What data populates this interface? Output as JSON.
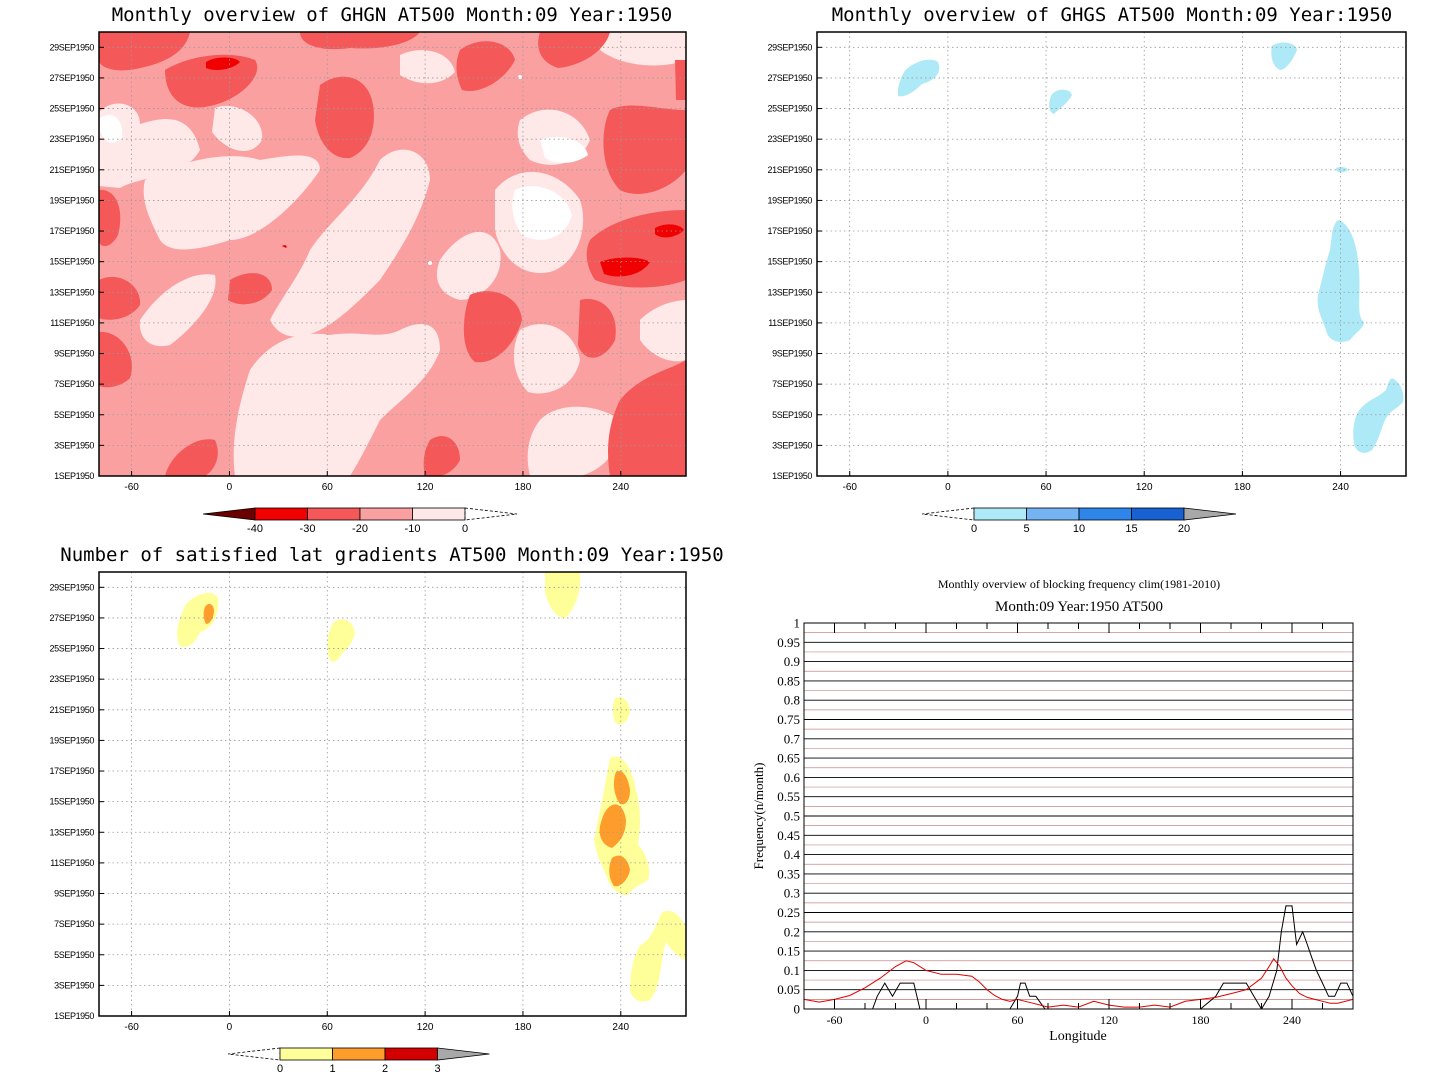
{
  "chart_data": [
    {
      "type": "heatmap",
      "title": "Monthly overview of GHGN AT500 Month:09 Year:1950",
      "y_tick_labels": [
        "1SEP1950",
        "3SEP1950",
        "5SEP1950",
        "7SEP1950",
        "9SEP1950",
        "11SEP1950",
        "13SEP1950",
        "15SEP1950",
        "17SEP1950",
        "19SEP1950",
        "21SEP1950",
        "23SEP1950",
        "25SEP1950",
        "27SEP1950",
        "29SEP1950"
      ],
      "x_tick_labels": [
        "-60",
        "0",
        "60",
        "120",
        "180",
        "240"
      ],
      "x_ticks": [
        -60,
        0,
        60,
        120,
        180,
        240
      ],
      "xlim": [
        -80,
        280
      ],
      "ylim": [
        1,
        30
      ],
      "grid": true,
      "colorbar": {
        "labels": [
          "-40",
          "-30",
          "-20",
          "-10",
          "0"
        ],
        "colors": [
          "#6b0000",
          "#f00000",
          "#f45858",
          "#fba0a0",
          "#ffe8e8",
          "#ffffff"
        ]
      }
    },
    {
      "type": "heatmap",
      "title": "Monthly overview of GHGS AT500 Month:09 Year:1950",
      "y_tick_labels": [
        "1SEP1950",
        "3SEP1950",
        "5SEP1950",
        "7SEP1950",
        "9SEP1950",
        "11SEP1950",
        "13SEP1950",
        "15SEP1950",
        "17SEP1950",
        "19SEP1950",
        "21SEP1950",
        "23SEP1950",
        "25SEP1950",
        "27SEP1950",
        "29SEP1950"
      ],
      "x_tick_labels": [
        "-60",
        "0",
        "60",
        "120",
        "180",
        "240"
      ],
      "x_ticks": [
        -60,
        0,
        60,
        120,
        180,
        240
      ],
      "xlim": [
        -80,
        280
      ],
      "ylim": [
        1,
        30
      ],
      "grid": true,
      "colorbar": {
        "labels": [
          "0",
          "5",
          "10",
          "15",
          "20"
        ],
        "colors": [
          "#ffffff",
          "#aee9f7",
          "#74b4f2",
          "#2f86ea",
          "#1761d2",
          "#a8a8a8"
        ]
      }
    },
    {
      "type": "heatmap",
      "title": "Number of satisfied lat gradients AT500 Month:09 Year:1950",
      "y_tick_labels": [
        "1SEP1950",
        "3SEP1950",
        "5SEP1950",
        "7SEP1950",
        "9SEP1950",
        "11SEP1950",
        "13SEP1950",
        "15SEP1950",
        "17SEP1950",
        "19SEP1950",
        "21SEP1950",
        "23SEP1950",
        "25SEP1950",
        "27SEP1950",
        "29SEP1950"
      ],
      "x_tick_labels": [
        "-60",
        "0",
        "60",
        "120",
        "180",
        "240"
      ],
      "x_ticks": [
        -60,
        0,
        60,
        120,
        180,
        240
      ],
      "xlim": [
        -80,
        280
      ],
      "ylim": [
        1,
        30
      ],
      "grid": true,
      "colorbar": {
        "labels": [
          "0",
          "1",
          "2",
          "3"
        ],
        "colors": [
          "#ffffff",
          "#ffff9a",
          "#ff9d2c",
          "#d20000",
          "#a8a8a8"
        ]
      }
    },
    {
      "type": "line",
      "title": "Monthly overview of blocking frequency clim(1981-2010)",
      "subtitle": "Month:09 Year:1950  AT500",
      "xlabel": "Longitude",
      "ylabel": "Frequency(n/month)",
      "xlim": [
        -80,
        280
      ],
      "ylim": [
        0,
        1
      ],
      "x_ticks": [
        -60,
        0,
        60,
        120,
        180,
        240
      ],
      "x_tick_labels": [
        "-60",
        "0",
        "60",
        "120",
        "180",
        "240"
      ],
      "y_ticks": [
        0,
        0.05,
        0.1,
        0.15,
        0.2,
        0.25,
        0.3,
        0.35,
        0.4,
        0.45,
        0.5,
        0.55,
        0.6,
        0.65,
        0.7,
        0.75,
        0.8,
        0.85,
        0.9,
        0.95,
        1
      ],
      "y_tick_labels": [
        "0",
        "0.05",
        "0.1",
        "0.15",
        "0.2",
        "0.25",
        "0.3",
        "0.35",
        "0.4",
        "0.45",
        "0.5",
        "0.55",
        "0.6",
        "0.65",
        "0.7",
        "0.75",
        "0.8",
        "0.85",
        "0.9",
        "0.95",
        "1"
      ],
      "series": [
        {
          "color": "#000000",
          "x": [
            -80,
            -35,
            -32,
            -27,
            -22,
            -17,
            -12,
            -8,
            -4,
            0,
            5,
            10,
            20,
            30,
            40,
            50,
            55,
            60,
            62,
            65,
            68,
            72,
            78,
            85,
            90,
            100,
            110,
            120,
            130,
            140,
            150,
            160,
            170,
            180,
            190,
            195,
            200,
            205,
            210,
            215,
            220,
            225,
            230,
            233,
            236,
            240,
            243,
            247,
            250,
            253,
            256,
            260,
            264,
            268,
            272,
            276,
            280
          ],
          "y": [
            0,
            0,
            0.033,
            0.067,
            0.033,
            0.067,
            0.067,
            0.067,
            0,
            0,
            0,
            0,
            0,
            0,
            0,
            0,
            0,
            0.033,
            0.067,
            0.067,
            0.033,
            0.033,
            0,
            0,
            0,
            0,
            0,
            0,
            0,
            0,
            0,
            0,
            0,
            0,
            0.033,
            0.067,
            0.067,
            0.067,
            0.067,
            0.033,
            0,
            0.033,
            0.1,
            0.2,
            0.267,
            0.267,
            0.167,
            0.2,
            0.167,
            0.133,
            0.1,
            0.067,
            0.033,
            0.033,
            0.067,
            0.067,
            0.033
          ]
        },
        {
          "color": "#e00000",
          "x": [
            -80,
            -70,
            -60,
            -50,
            -40,
            -30,
            -20,
            -13,
            -8,
            0,
            10,
            20,
            30,
            35,
            40,
            45,
            50,
            55,
            60,
            65,
            70,
            75,
            80,
            90,
            100,
            110,
            120,
            130,
            140,
            150,
            160,
            170,
            180,
            190,
            200,
            210,
            220,
            225,
            228,
            232,
            236,
            240,
            245,
            250,
            255,
            260,
            265,
            270,
            280
          ],
          "y": [
            0.025,
            0.018,
            0.025,
            0.035,
            0.055,
            0.08,
            0.11,
            0.125,
            0.12,
            0.1,
            0.09,
            0.09,
            0.085,
            0.07,
            0.05,
            0.035,
            0.025,
            0.02,
            0.025,
            0.02,
            0.015,
            0.01,
            0.005,
            0.01,
            0.005,
            0.02,
            0.01,
            0.005,
            0.005,
            0.01,
            0.005,
            0.02,
            0.025,
            0.03,
            0.04,
            0.05,
            0.08,
            0.11,
            0.13,
            0.11,
            0.08,
            0.06,
            0.04,
            0.03,
            0.025,
            0.02,
            0.015,
            0.015,
            0.025
          ]
        }
      ]
    }
  ]
}
